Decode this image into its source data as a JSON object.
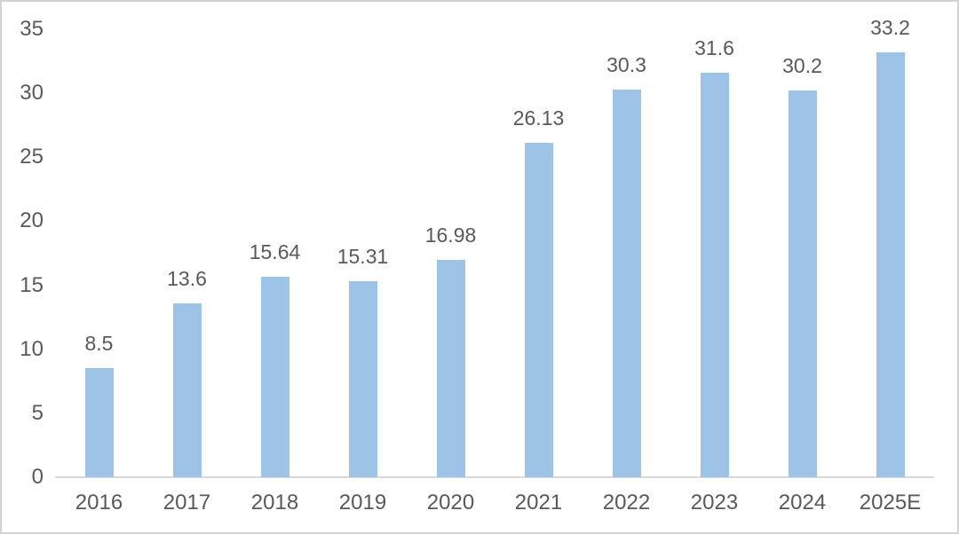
{
  "chart_data": {
    "type": "bar",
    "title": "",
    "xlabel": "",
    "ylabel": "",
    "categories": [
      "2016",
      "2017",
      "2018",
      "2019",
      "2020",
      "2021",
      "2022",
      "2023",
      "2024",
      "2025E"
    ],
    "values": [
      8.5,
      13.6,
      15.64,
      15.31,
      16.98,
      26.13,
      30.3,
      31.6,
      30.2,
      33.2
    ],
    "data_labels": [
      "8.5",
      "13.6",
      "15.64",
      "15.31",
      "16.98",
      "26.13",
      "30.3",
      "31.6",
      "30.2",
      "33.2"
    ],
    "yticks": [
      0,
      5,
      10,
      15,
      20,
      25,
      30,
      35
    ],
    "ylim": [
      0,
      35
    ],
    "grid": false,
    "legend": "none",
    "colors": {
      "bar_fill": "#9DC3E6",
      "axis_line": "#D9D9D9",
      "tick_text": "#595959",
      "data_label_text": "#595959",
      "background": "#FFFFFF"
    }
  }
}
